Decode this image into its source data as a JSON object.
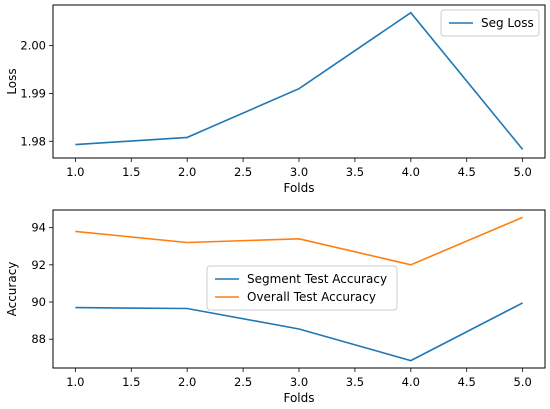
{
  "chart_data": [
    {
      "type": "line",
      "x": [
        1.0,
        2.0,
        3.0,
        4.0,
        5.0
      ],
      "xticks": [
        "1.0",
        "1.5",
        "2.0",
        "2.5",
        "3.0",
        "3.5",
        "4.0",
        "4.5",
        "5.0"
      ],
      "xlim": [
        0.8,
        5.2
      ],
      "ylim": [
        1.9765,
        2.0085
      ],
      "yticks": [
        "1.98",
        "1.99",
        "2.00"
      ],
      "xlabel": "Folds",
      "ylabel": "Loss",
      "legend_position": "top-right",
      "grid": false,
      "series": [
        {
          "name": "Seg Loss",
          "color": "#1f77b4",
          "values": [
            1.9793,
            1.9808,
            1.991,
            2.0069,
            1.9783
          ]
        }
      ]
    },
    {
      "type": "line",
      "x": [
        1.0,
        2.0,
        3.0,
        4.0,
        5.0
      ],
      "xticks": [
        "1.0",
        "1.5",
        "2.0",
        "2.5",
        "3.0",
        "3.5",
        "4.0",
        "4.5",
        "5.0"
      ],
      "xlim": [
        0.8,
        5.2
      ],
      "ylim": [
        86.45,
        94.95
      ],
      "yticks": [
        "88",
        "90",
        "92",
        "94"
      ],
      "xlabel": "Folds",
      "ylabel": "Accuracy",
      "legend_position": "center",
      "grid": false,
      "series": [
        {
          "name": "Segment Test Accuracy",
          "color": "#1f77b4",
          "values": [
            89.7,
            89.65,
            88.55,
            86.85,
            89.95
          ]
        },
        {
          "name": "Overall Test Accuracy",
          "color": "#ff7f0e",
          "values": [
            93.8,
            93.2,
            93.4,
            92.0,
            94.55
          ]
        }
      ]
    }
  ]
}
